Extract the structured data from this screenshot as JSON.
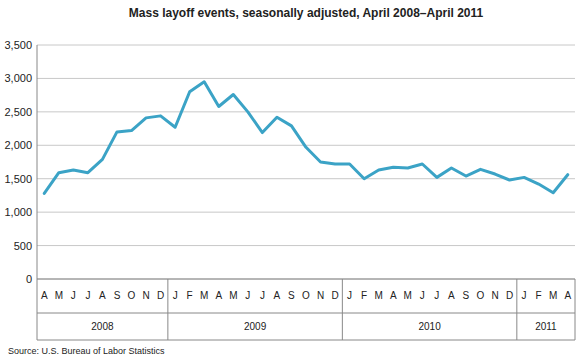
{
  "chart_data": {
    "type": "line",
    "title": "Mass layoff events, seasonally adjusted, April 2008–April 2011",
    "source": "Source: U.S. Bureau of Labor Statistics",
    "categories": [
      "A",
      "M",
      "J",
      "J",
      "A",
      "S",
      "O",
      "N",
      "D",
      "J",
      "F",
      "M",
      "A",
      "M",
      "J",
      "J",
      "A",
      "S",
      "O",
      "N",
      "D",
      "J",
      "F",
      "M",
      "A",
      "M",
      "J",
      "J",
      "A",
      "S",
      "O",
      "N",
      "D",
      "J",
      "F",
      "M",
      "A"
    ],
    "groups": [
      {
        "label": "2008",
        "count": 9
      },
      {
        "label": "2009",
        "count": 12
      },
      {
        "label": "2010",
        "count": 12
      },
      {
        "label": "2011",
        "count": 4
      }
    ],
    "values": [
      1280,
      1590,
      1630,
      1590,
      1790,
      2200,
      2220,
      2410,
      2440,
      2270,
      2800,
      2950,
      2580,
      2760,
      2500,
      2190,
      2420,
      2290,
      1970,
      1750,
      1720,
      1720,
      1500,
      1630,
      1670,
      1660,
      1720,
      1520,
      1660,
      1540,
      1640,
      1570,
      1480,
      1520,
      1420,
      1290,
      1560
    ],
    "color": "#3ba3c6",
    "ylim": [
      0,
      3500
    ],
    "yticks": [
      0,
      500,
      {
        "value": 1000,
        "label": "1,000"
      },
      {
        "value": 1500,
        "label": "1,500"
      },
      {
        "value": 2000,
        "label": "2,000"
      },
      {
        "value": 2500,
        "label": "2,500"
      },
      {
        "value": 3000,
        "label": "3,000"
      },
      {
        "value": 3500,
        "label": "3,500"
      }
    ],
    "grid": true
  }
}
